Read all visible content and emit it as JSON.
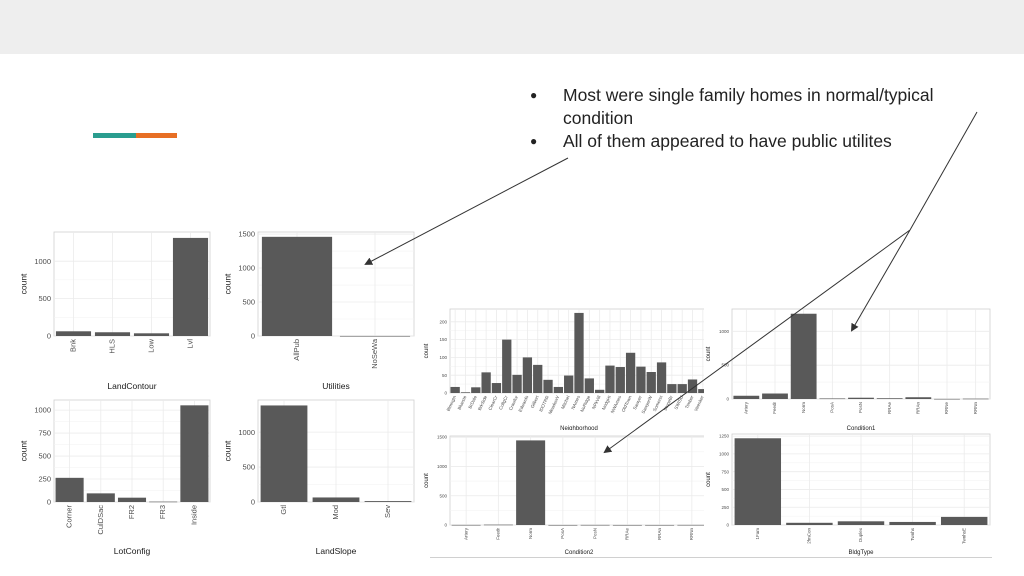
{
  "slide": {
    "accent_colors": [
      "#2a9d8f",
      "#e76f24"
    ],
    "bullets": [
      "Most were single family homes in normal/typical condition",
      "All of them appeared to have public utilites"
    ]
  },
  "style": {
    "bar_color": "#595959",
    "grid_color": "#ebebeb",
    "arrow_color": "#333333"
  },
  "chart_data": [
    {
      "id": "landcontour",
      "type": "bar",
      "categories": [
        "Bnk",
        "HLS",
        "Low",
        "Lvl"
      ],
      "values": [
        63,
        50,
        36,
        1311
      ],
      "xlabel": "LandContour",
      "ylabel": "count",
      "ylim": [
        0,
        1390
      ],
      "yticks": [
        0,
        500,
        1000
      ],
      "grid": true
    },
    {
      "id": "utilities",
      "type": "bar",
      "categories": [
        "AllPub",
        "NoSeWa"
      ],
      "values": [
        1459,
        1
      ],
      "xlabel": "Utilities",
      "ylabel": "count",
      "ylim": [
        0,
        1530
      ],
      "yticks": [
        0,
        500,
        1000,
        1500
      ],
      "grid": true
    },
    {
      "id": "lotconfig",
      "type": "bar",
      "categories": [
        "Corner",
        "CulDSac",
        "FR2",
        "FR3",
        "Inside"
      ],
      "values": [
        263,
        94,
        47,
        4,
        1052
      ],
      "xlabel": "LotConfig",
      "ylabel": "count",
      "ylim": [
        0,
        1110
      ],
      "yticks": [
        0,
        250,
        500,
        750,
        1000
      ],
      "grid": true
    },
    {
      "id": "landslope",
      "type": "bar",
      "categories": [
        "Gtl",
        "Mod",
        "Sev"
      ],
      "values": [
        1382,
        65,
        13
      ],
      "xlabel": "LandSlope",
      "ylabel": "count",
      "ylim": [
        0,
        1460
      ],
      "yticks": [
        0,
        500,
        1000
      ],
      "grid": true
    },
    {
      "id": "neighborhood",
      "type": "bar",
      "categories": [
        "Blmngtn",
        "Blueste",
        "BrDale",
        "BrkSide",
        "ClearCr",
        "CollgCr",
        "Crawfor",
        "Edwards",
        "Gilbert",
        "IDOTRR",
        "MeadowV",
        "Mitchel",
        "NAmes",
        "NoRidge",
        "NPkVill",
        "NridgHt",
        "NWAmes",
        "OldTown",
        "Sawyer",
        "SawyerW",
        "Somerst",
        "StoneBr",
        "SWISU",
        "Timber",
        "Veenker"
      ],
      "values": [
        17,
        2,
        16,
        58,
        28,
        150,
        51,
        100,
        79,
        37,
        17,
        49,
        225,
        41,
        9,
        77,
        73,
        113,
        74,
        59,
        86,
        25,
        25,
        38,
        11
      ],
      "xlabel": "Neighborhood",
      "ylabel": "count",
      "ylim": [
        0,
        236
      ],
      "yticks": [
        0,
        50,
        100,
        150,
        200
      ],
      "grid": true
    },
    {
      "id": "condition1",
      "type": "bar",
      "categories": [
        "Artery",
        "Feedr",
        "Norm",
        "PosA",
        "PosN",
        "RRAe",
        "RRAn",
        "RRNe",
        "RRNn"
      ],
      "values": [
        48,
        81,
        1260,
        8,
        19,
        11,
        26,
        2,
        5
      ],
      "xlabel": "Condition1",
      "ylabel": "count",
      "ylim": [
        0,
        1330
      ],
      "yticks": [
        0,
        500,
        1000
      ],
      "grid": true
    },
    {
      "id": "condition2",
      "type": "bar",
      "categories": [
        "Artery",
        "Feedr",
        "Norm",
        "PosA",
        "PosN",
        "RRAe",
        "RRAn",
        "RRNn"
      ],
      "values": [
        2,
        6,
        1445,
        1,
        2,
        1,
        1,
        2
      ],
      "xlabel": "Condition2",
      "ylabel": "count",
      "ylim": [
        0,
        1520
      ],
      "yticks": [
        0,
        500,
        1000,
        1500
      ],
      "grid": true
    },
    {
      "id": "bldgtype",
      "type": "bar",
      "categories": [
        "1Fam",
        "2fmCon",
        "Duplex",
        "Twnhs",
        "TwnhsE"
      ],
      "values": [
        1220,
        31,
        52,
        43,
        114
      ],
      "xlabel": "BldgType",
      "ylabel": "count",
      "ylim": [
        0,
        1280
      ],
      "yticks": [
        0,
        250,
        500,
        750,
        1000,
        1250
      ],
      "grid": true
    }
  ]
}
